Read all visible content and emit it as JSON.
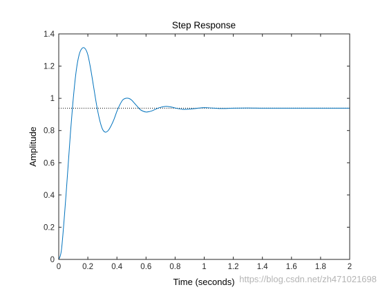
{
  "chart_data": {
    "type": "line",
    "title": "Step Response",
    "xlabel": "Time (seconds)",
    "ylabel": "Amplitude",
    "xlim": [
      0,
      2
    ],
    "ylim": [
      0,
      1.4
    ],
    "xticks": [
      0,
      0.2,
      0.4,
      0.6,
      0.8,
      1,
      1.2,
      1.4,
      1.6,
      1.8,
      2
    ],
    "yticks": [
      0,
      0.2,
      0.4,
      0.6,
      0.8,
      1,
      1.2,
      1.4
    ],
    "xtick_labels": [
      "0",
      "0.2",
      "0.4",
      "0.6",
      "0.8",
      "1",
      "1.2",
      "1.4",
      "1.6",
      "1.8",
      "2"
    ],
    "ytick_labels": [
      "0",
      "0.2",
      "0.4",
      "0.6",
      "0.8",
      "1",
      "1.2",
      "1.4"
    ],
    "grid": false,
    "series": [
      {
        "color": "#0072bd",
        "x": [
          0,
          0.02,
          0.05,
          0.08,
          0.1,
          0.12,
          0.14,
          0.16,
          0.18,
          0.2,
          0.22,
          0.24,
          0.26,
          0.28,
          0.3,
          0.32,
          0.34,
          0.36,
          0.38,
          0.4,
          0.42,
          0.44,
          0.46,
          0.48,
          0.5,
          0.52,
          0.54,
          0.56,
          0.58,
          0.6,
          0.62,
          0.64,
          0.66,
          0.68,
          0.7,
          0.72,
          0.74,
          0.76,
          0.78,
          0.8,
          0.85,
          0.9,
          0.95,
          1.0,
          1.05,
          1.1,
          1.15,
          1.2,
          1.3,
          1.4,
          1.5,
          1.6,
          1.7,
          1.8,
          1.9,
          2.0
        ],
        "y": [
          0,
          0.07,
          0.4,
          0.78,
          1.0,
          1.17,
          1.27,
          1.31,
          1.31,
          1.27,
          1.18,
          1.07,
          0.96,
          0.87,
          0.81,
          0.79,
          0.8,
          0.83,
          0.87,
          0.92,
          0.96,
          0.99,
          1.0,
          1.0,
          0.99,
          0.97,
          0.95,
          0.93,
          0.92,
          0.915,
          0.917,
          0.922,
          0.93,
          0.938,
          0.944,
          0.948,
          0.95,
          0.948,
          0.945,
          0.94,
          0.932,
          0.933,
          0.938,
          0.942,
          0.94,
          0.937,
          0.937,
          0.939,
          0.94,
          0.939,
          0.939,
          0.939,
          0.939,
          0.939,
          0.939,
          0.939
        ]
      }
    ],
    "reference_lines": [
      {
        "orientation": "horizontal",
        "y": 0.939,
        "style": "dotted",
        "color": "#000000"
      }
    ]
  },
  "watermark": {
    "text": "https://blog.csdn.net/zh471021698"
  },
  "colors": {
    "axis": "#262626",
    "background": "#ffffff"
  }
}
